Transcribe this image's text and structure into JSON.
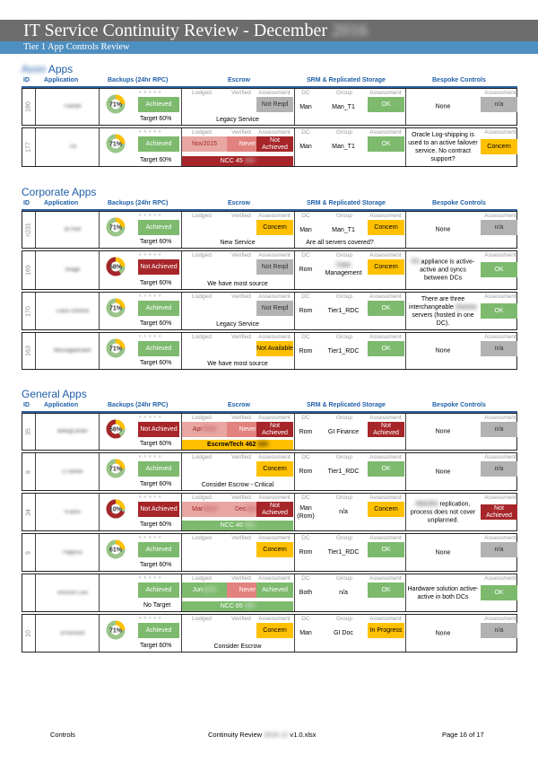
{
  "title": "IT Service Continuity Review - December",
  "title_year": "2016",
  "subtitle": "Tier 1 App Controls Review",
  "headers": {
    "id": "ID",
    "app": "Application",
    "backups": "Backups (24hr RPC)",
    "escrow": "Escrow",
    "srm": "SRM & Replicated Storage",
    "bespoke": "Bespoke Controls",
    "lodged": "Lodged",
    "verified": "Verified",
    "assessment": "Assessment",
    "dc": "DC",
    "group": "Group"
  },
  "sections": [
    {
      "title_prefix": "Avon",
      "title_suffix": " Apps",
      "rows": [
        {
          "id": "180",
          "app": "FileNet",
          "backup_pct": "71",
          "backup_status": "Achieved",
          "backup_status_color": "g",
          "target": "Target 60%",
          "lodged": "",
          "verified": "",
          "escrow_assess": "Not Reqd",
          "escrow_assess_color": "gr",
          "escrow_note": "Legacy Service",
          "escrow_note_style": "plain",
          "dc": "Man",
          "group": "Man_T1",
          "srm_assess": "OK",
          "srm_color": "g",
          "bespoke_text": "None",
          "bespoke_assess": "n/a",
          "bespoke_color": "gr"
        },
        {
          "id": "177",
          "app": "TIA",
          "backup_pct": "71",
          "backup_status": "Achieved",
          "backup_status_color": "g",
          "target": "Target 60%",
          "lodged": "Nov 2015",
          "verified": "Never",
          "escrow_assess": "Not Achieved",
          "escrow_assess_color": "r",
          "escrow_note": "NCC 45",
          "escrow_note_style": "r",
          "dc": "Man",
          "group": "Man_T1",
          "srm_assess": "OK",
          "srm_color": "g",
          "bespoke_text": "Oracle Log-shipping is used to an active failover service. No contract support?",
          "bespoke_assess": "Concern",
          "bespoke_color": "y"
        }
      ]
    },
    {
      "title_prefix": "Corporate",
      "title_suffix": " Apps",
      "rows": [
        {
          "id": "n231",
          "app": "BI Hub",
          "backup_pct": "71",
          "backup_status": "Achieved",
          "backup_status_color": "g",
          "target": "Target 60%",
          "lodged": "",
          "verified": "",
          "escrow_assess": "Concern",
          "escrow_assess_color": "y",
          "escrow_note": "New Service",
          "escrow_note_style": "plain",
          "dc": "Man",
          "group": "Man_T1",
          "srm_assess": "Concern",
          "srm_color": "y",
          "srm_note": "Are all servers covered?",
          "bespoke_text": "None",
          "bespoke_assess": "n/a",
          "bespoke_color": "gr"
        },
        {
          "id": "169",
          "app": "Image",
          "backup_pct": "58",
          "backup_status": "Not Achieved",
          "backup_status_color": "r",
          "target": "Target 60%",
          "lodged": "",
          "verified": "",
          "escrow_assess": "Not Reqd",
          "escrow_assess_color": "gr",
          "escrow_note": "We have most source",
          "escrow_note_style": "plain",
          "dc": "Rom",
          "group": "Case Management",
          "srm_assess": "Concern",
          "srm_color": "y",
          "bespoke_text": "FS appliance is active-active and syncs between DCs",
          "bespoke_assess": "OK",
          "bespoke_color": "g"
        },
        {
          "id": "170",
          "app": "Lotus Domino",
          "backup_pct": "71",
          "backup_status": "Achieved",
          "backup_status_color": "g",
          "target": "Target 60%",
          "lodged": "",
          "verified": "",
          "escrow_assess": "Not Reqd",
          "escrow_assess_color": "gr",
          "escrow_note": "Legacy Service",
          "escrow_note_style": "plain",
          "dc": "Rom",
          "group": "Tier1_RDC",
          "srm_assess": "OK",
          "srm_color": "g",
          "bespoke_text": "There are three interchangeable Domino servers (hosted in one DC).",
          "bespoke_assess": "OK",
          "bespoke_color": "g"
        },
        {
          "id": "163",
          "app": "MessageBroker",
          "backup_pct": "71",
          "backup_status": "Achieved",
          "backup_status_color": "g",
          "target": "Target 60%",
          "lodged": "",
          "verified": "",
          "escrow_assess": "Not Available",
          "escrow_assess_color": "y",
          "escrow_note": "We have most source",
          "escrow_note_style": "plain",
          "dc": "Rom",
          "group": "Tier1_RDC",
          "srm_assess": "OK",
          "srm_color": "g",
          "bespoke_text": "None",
          "bespoke_assess": "n/a",
          "bespoke_color": "gr"
        }
      ]
    },
    {
      "title_prefix": "General",
      "title_suffix": " Apps",
      "rows": [
        {
          "id": "35",
          "app": "BillingCenter",
          "backup_pct": "58",
          "backup_status": "Not Achieved",
          "backup_status_color": "r",
          "target": "Target 60%",
          "lodged": "Apr 2016",
          "verified": "Never",
          "escrow_assess": "Not Achieved",
          "escrow_assess_color": "r",
          "escrow_note": "EscrowTech 462",
          "escrow_note_style": "y",
          "dc": "Rom",
          "group": "GI Finance",
          "srm_assess": "Not Achieved",
          "srm_color": "r",
          "bespoke_text": "None",
          "bespoke_assess": "n/a",
          "bespoke_color": "gr"
        },
        {
          "id": "8",
          "app": "C-Series",
          "backup_pct": "71",
          "backup_status": "Achieved",
          "backup_status_color": "g",
          "target": "Target 60%",
          "lodged": "",
          "verified": "",
          "escrow_assess": "Concern",
          "escrow_assess_color": "y",
          "escrow_note": "Consider Escrow - Critical",
          "escrow_note_style": "plain",
          "dc": "Rom",
          "group": "Tier1_RDC",
          "srm_assess": "OK",
          "srm_color": "g",
          "bespoke_text": "None",
          "bespoke_assess": "n/a",
          "bespoke_color": "gr"
        },
        {
          "id": "34",
          "app": "IFaces",
          "backup_pct": "10",
          "backup_status": "Not Achieved",
          "backup_status_color": "r",
          "target": "Target 60%",
          "lodged": "Mar 2016",
          "verified": "Dec 2016",
          "escrow_assess": "Not Achieved",
          "escrow_assess_color": "r",
          "escrow_note": "NCC 40",
          "escrow_note_style": "g",
          "dc": "Man (Rom)",
          "group": "n/a",
          "srm_assess": "Concern",
          "srm_color": "y",
          "bespoke_text": "IFACES replication, process does not cover unplanned.",
          "bespoke_assess": "Not Achieved",
          "bespoke_color": "r"
        },
        {
          "id": "9",
          "app": "Papyrus",
          "backup_pct": "61",
          "backup_status": "Achieved",
          "backup_status_color": "g",
          "target": "Target 60%",
          "lodged": "",
          "verified": "",
          "escrow_assess": "Concern",
          "escrow_assess_color": "y",
          "escrow_note": "",
          "escrow_note_style": "plain",
          "dc": "Rom",
          "group": "Tier1_RDC",
          "srm_assess": "OK",
          "srm_color": "g",
          "bespoke_text": "None",
          "bespoke_assess": "n/a",
          "bespoke_color": "gr"
        },
        {
          "id": "",
          "app": "RADAR Live",
          "backup_pct": "",
          "backup_status": "Achieved",
          "backup_status_color": "g",
          "target": "No Target",
          "lodged": "Jun 2016",
          "verified": "Never",
          "escrow_assess": "Achieved",
          "escrow_assess_color": "g",
          "escrow_note": "NCC 65",
          "escrow_note_style": "g",
          "dc": "Both",
          "group": "n/a",
          "srm_assess": "OK",
          "srm_color": "g",
          "bespoke_text": "Hardware solution active-active in both DCs",
          "bespoke_assess": "OK",
          "bespoke_color": "g"
        },
        {
          "id": "10",
          "app": "uFrevision",
          "backup_pct": "71",
          "backup_status": "Achieved",
          "backup_status_color": "g",
          "target": "Target 60%",
          "lodged": "",
          "verified": "",
          "escrow_assess": "Concern",
          "escrow_assess_color": "y",
          "escrow_note": "Consider Escrow",
          "escrow_note_style": "plain",
          "dc": "Man",
          "group": "GI Doc",
          "srm_assess": "In Progress",
          "srm_color": "y",
          "bespoke_text": "None",
          "bespoke_assess": "n/a",
          "bespoke_color": "gr"
        }
      ]
    }
  ],
  "footer": {
    "left": "Controls",
    "center_prefix": "Continuity Review",
    "center_blur": "2016 12",
    "center_suffix": " v1.0.xlsx",
    "right": "Page 16 of 17"
  },
  "colors": {
    "green": "#7dba6e",
    "red": "#a6262a",
    "pink": "#e8a7a3",
    "yellow": "#ffc000",
    "grey": "#b2b2b2",
    "blue": "#2060a8"
  }
}
